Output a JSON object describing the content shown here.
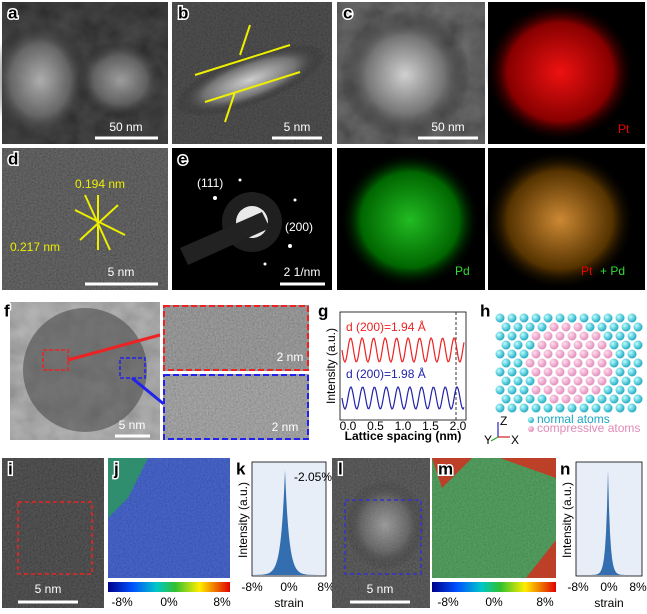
{
  "panels": {
    "a": {
      "label": "a",
      "scale_bar": "50 nm"
    },
    "b": {
      "label": "b",
      "scale_bar": "5 nm"
    },
    "c": {
      "label": "c",
      "scale_bar": "50 nm",
      "map_pt": "Pt",
      "map_pd": "Pd",
      "merge": [
        "Pt",
        "+ Pd"
      ]
    },
    "d": {
      "label": "d",
      "spacing_1": "0.194 nm",
      "spacing_2": "0.217 nm",
      "scale_bar": "5 nm"
    },
    "e": {
      "label": "e",
      "ring_1": "(111)",
      "ring_2": "(200)",
      "scale_bar": "2 1/nm"
    },
    "f": {
      "label": "f",
      "scale_bar": "5 nm",
      "zoom_scale_1": "2 nm",
      "zoom_scale_2": "2 nm"
    },
    "g": {
      "label": "g",
      "trace_1": "d (200)=1.94 Å",
      "trace_2": "d (200)=1.98 Å",
      "y_label": "Intensity (a.u.)",
      "x_label": "Lattice spacing (nm)",
      "x_ticks": [
        "0.0",
        "0.5",
        "1.0",
        "1.5",
        "2.0"
      ]
    },
    "h": {
      "label": "h",
      "legend": [
        "normal atoms",
        "compressive atoms"
      ],
      "axes": [
        "Z",
        "Y",
        "X"
      ]
    },
    "i": {
      "label": "i",
      "scale_bar": "5 nm"
    },
    "j": {
      "label": "j",
      "colorbar": [
        "-8%",
        "0%",
        "8%"
      ]
    },
    "k": {
      "label": "k",
      "peak": "-2.05%",
      "y_label": "Intensity (a.u.)",
      "x_label": "strain",
      "x_ticks": [
        "-8%",
        "0%",
        "8%"
      ]
    },
    "l": {
      "label": "l",
      "scale_bar": "5 nm"
    },
    "m": {
      "label": "m",
      "colorbar": [
        "-8%",
        "0%",
        "8%"
      ]
    },
    "n": {
      "label": "n",
      "y_label": "Intensity (a.u.)",
      "x_label": "strain",
      "x_ticks": [
        "-8%",
        "0%",
        "8%"
      ]
    }
  }
}
